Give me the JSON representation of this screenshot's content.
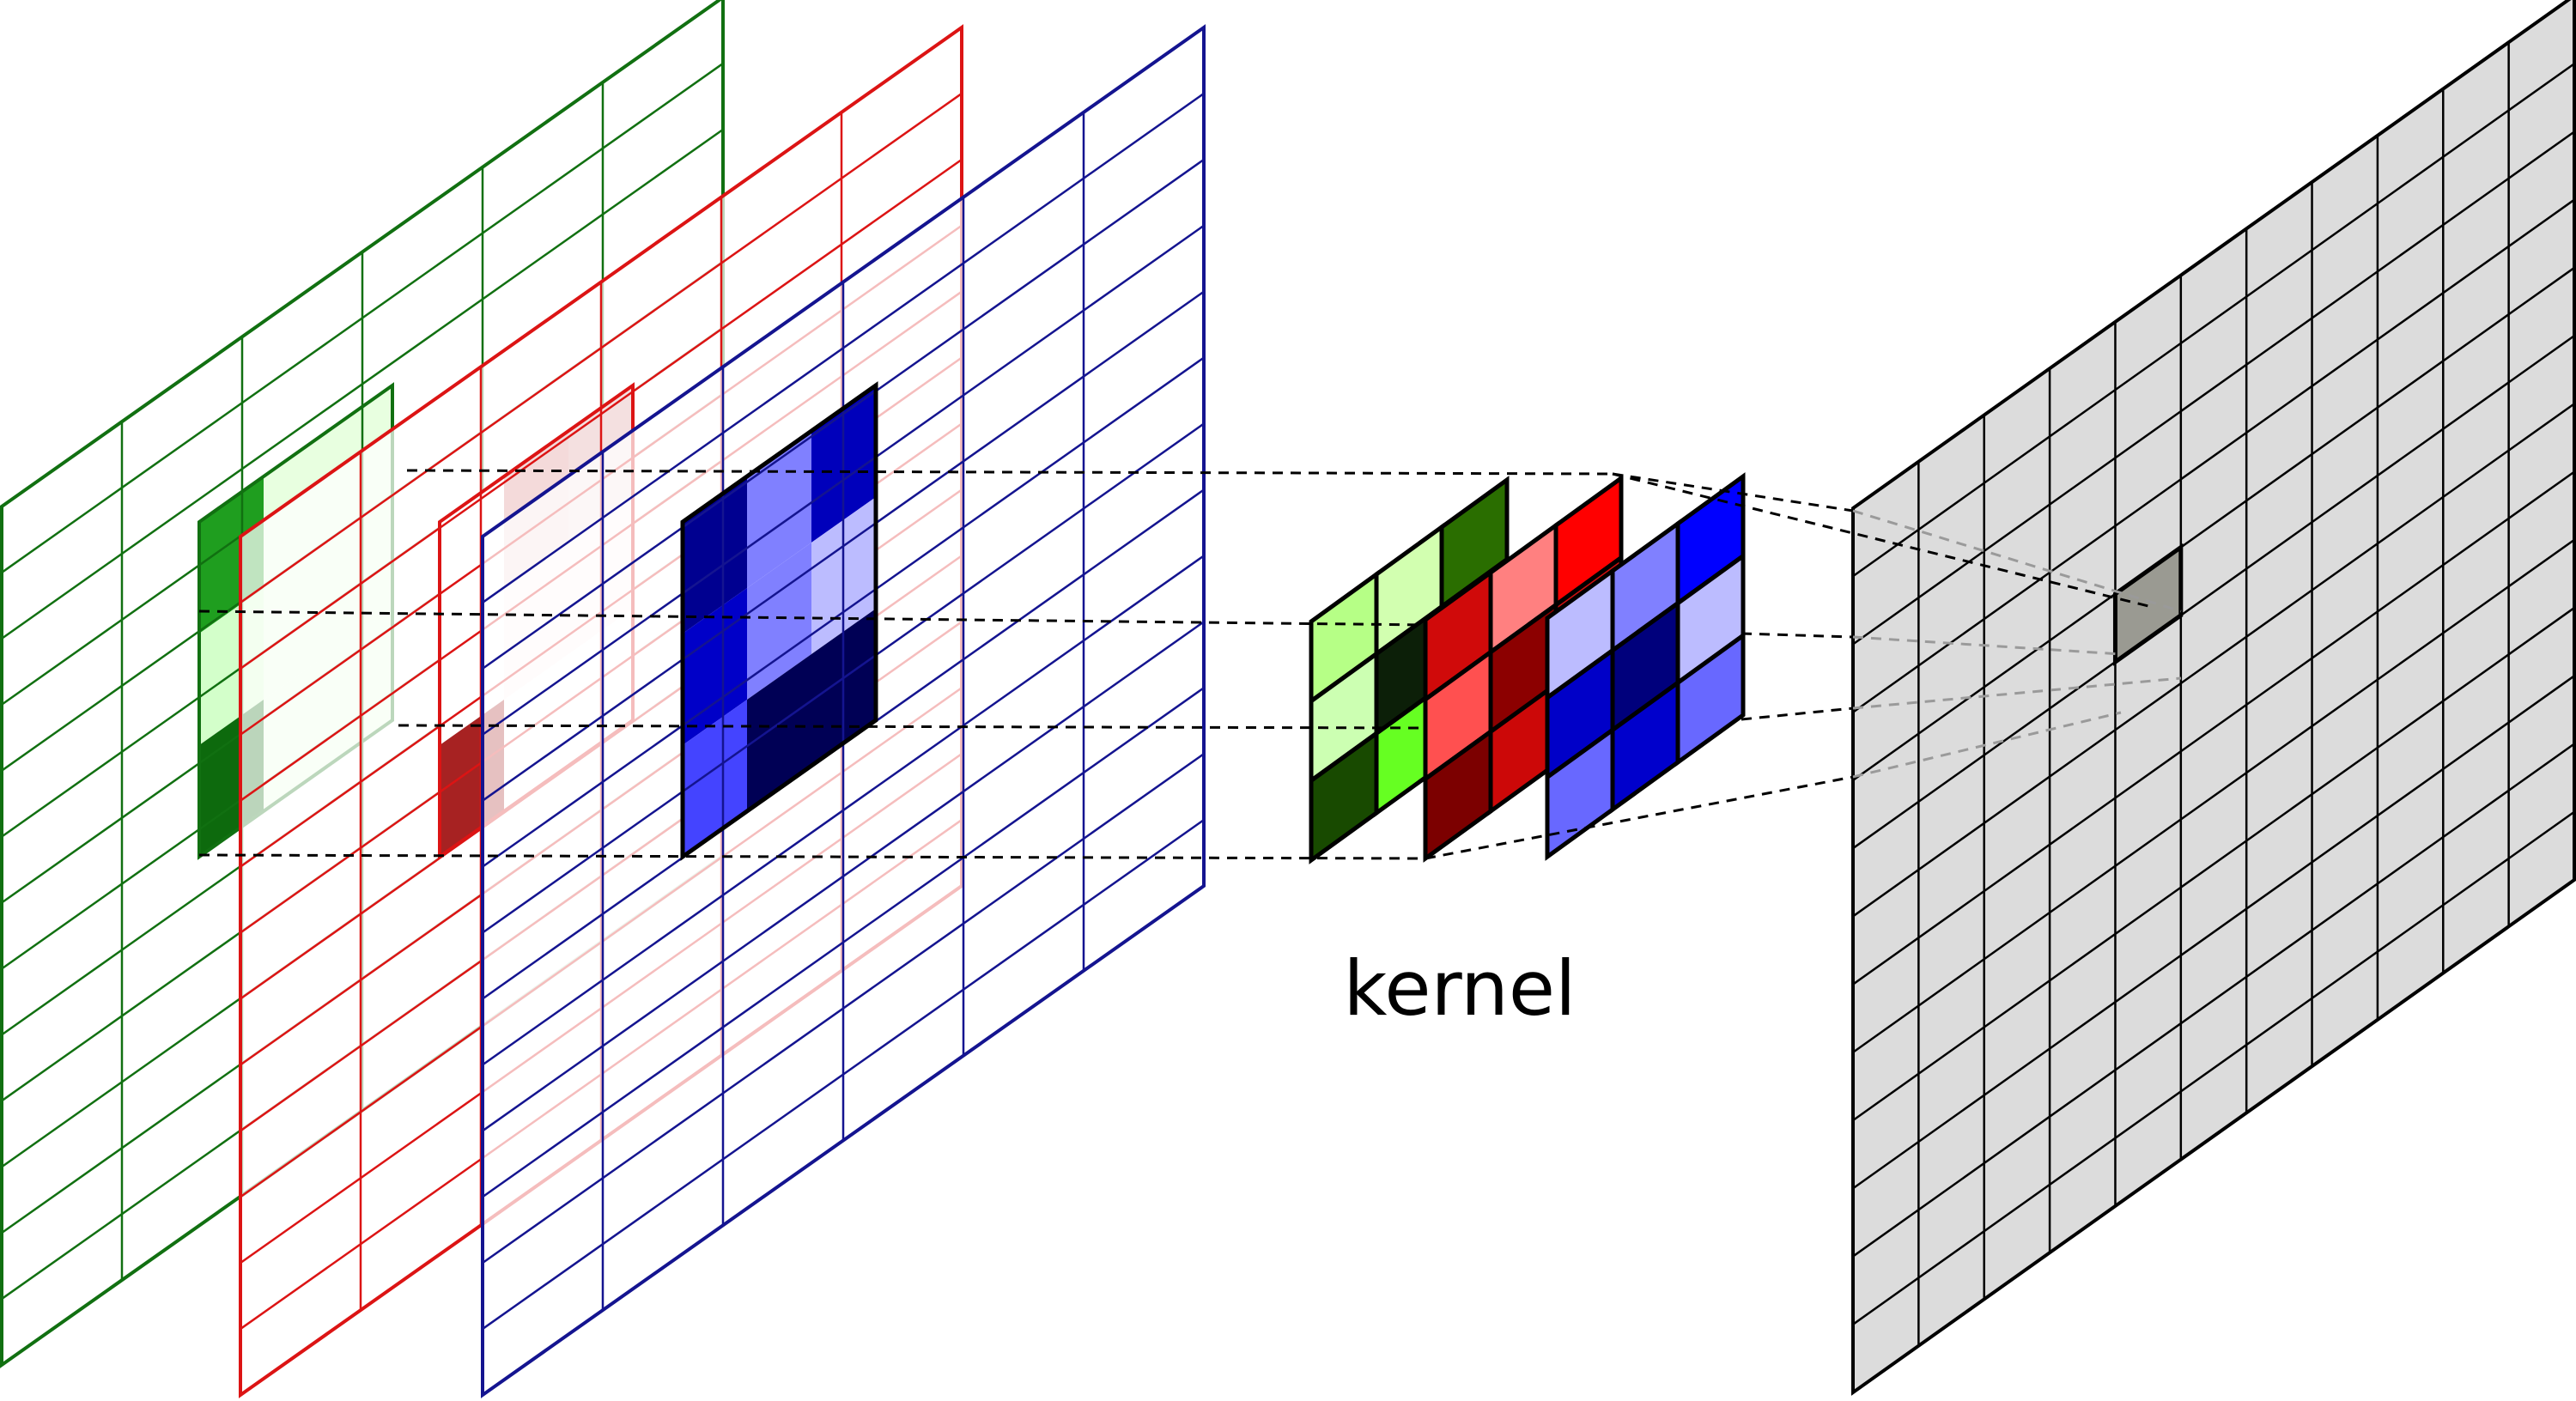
{
  "label": {
    "kernel": "kernel"
  },
  "colors": {
    "green": "#117011",
    "red": "#dc1414",
    "blue": "#141490",
    "output_fill": "#dcdcdc",
    "output_line": "#000000",
    "output_selected": "#9a9a92",
    "guide": "#000000",
    "guide_faint": "#9a9a9a"
  },
  "input_grid": {
    "rows": 13,
    "cols": 6
  },
  "output_grid": {
    "rows": 13,
    "cols": 11
  },
  "kernel_size": 3,
  "input_layers": [
    {
      "name": "green-channel",
      "stroke": "#117011",
      "window": [
        "#1f9e1f",
        "#e8ffe0",
        "#e8ffe0",
        "#d3ffca",
        "#e8ffe0",
        "#e8ffe0",
        "#0d6a0d",
        "#e8ffe0",
        "#e8ffe0"
      ]
    },
    {
      "name": "red-channel",
      "stroke": "#dc1414",
      "window": [
        "#ffffff",
        "#f4dada",
        "#f4e0e0",
        "#ffffff",
        "#fff4f4",
        "#fff4f4",
        "#a72222",
        "#ffffff",
        "#ffffff"
      ]
    },
    {
      "name": "blue-channel",
      "stroke": "#141490",
      "window": [
        "#000090",
        "#8080ff",
        "#0000bb",
        "#0000c8",
        "#8080ff",
        "#bcbcff",
        "#4444ff",
        "#000055",
        "#000055"
      ]
    }
  ],
  "kernel_layers": [
    {
      "name": "kernel-green",
      "cells": [
        "#b6ff86",
        "#d2ffb0",
        "#2a6e00",
        "#ccffb2",
        "#0c1f08",
        "#ccffb2",
        "#184a00",
        "#66ff22",
        "#184a00"
      ]
    },
    {
      "name": "kernel-red",
      "cells": [
        "#d00a0a",
        "#ff8080",
        "#ff0000",
        "#ff5050",
        "#8c0000",
        "#cc1010",
        "#7c0000",
        "#cc0808",
        "#cc0808"
      ]
    },
    {
      "name": "kernel-blue",
      "cells": [
        "#bcbcff",
        "#8080ff",
        "#0000ff",
        "#0000c8",
        "#00007c",
        "#bcbcff",
        "#6868ff",
        "#0000cc",
        "#6868ff"
      ]
    }
  ]
}
